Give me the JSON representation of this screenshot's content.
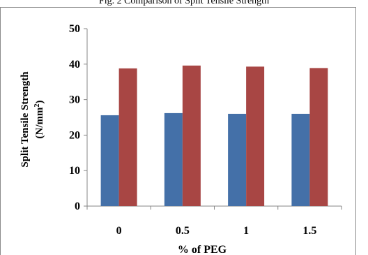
{
  "chart_data": {
    "type": "bar",
    "title": "Fig. 2 Comparison of Split Tensile Strength",
    "xlabel": "% of PEG",
    "ylabel_line1": "Split Tensile Strength",
    "ylabel_line2_prefix": "(N/mm",
    "ylabel_line2_sup": "2",
    "ylabel_line2_suffix": ")",
    "categories": [
      "0",
      "0.5",
      "1",
      "1.5"
    ],
    "ylim": [
      0,
      50
    ],
    "yticks": [
      0,
      10,
      20,
      30,
      40,
      50
    ],
    "grid": false,
    "series": [
      {
        "color": "#4470a8",
        "values": [
          25.6,
          26.2,
          26.0,
          26.0
        ]
      },
      {
        "color": "#a84644",
        "values": [
          38.8,
          39.6,
          39.3,
          38.9
        ]
      }
    ]
  }
}
